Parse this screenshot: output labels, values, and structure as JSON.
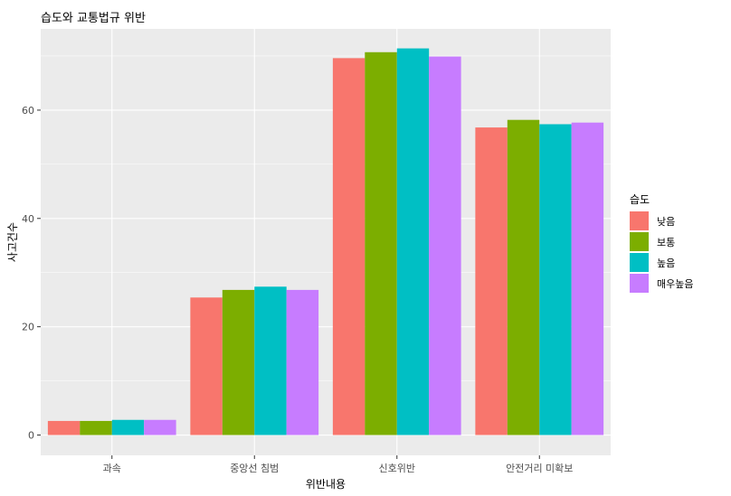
{
  "chart_data": {
    "type": "bar",
    "title": "습도와 교통법규 위반",
    "xlabel": "위반내용",
    "ylabel": "사고건수",
    "categories": [
      "과속",
      "중앙선 침범",
      "신호위반",
      "안전거리 미확보"
    ],
    "series": [
      {
        "name": "낮음",
        "values": [
          2.6,
          25.4,
          69.6,
          56.8
        ]
      },
      {
        "name": "보통",
        "values": [
          2.6,
          26.8,
          70.7,
          58.2
        ]
      },
      {
        "name": "높음",
        "values": [
          2.8,
          27.4,
          71.4,
          57.4
        ]
      },
      {
        "name": "매우높음",
        "values": [
          2.8,
          26.8,
          69.9,
          57.7
        ]
      }
    ],
    "ylim": [
      0,
      75
    ],
    "yticks": [
      0,
      20,
      40,
      60
    ],
    "grid": true,
    "legend_title": "습도",
    "legend_position": "right",
    "colors": {
      "낮음": "#F8766D",
      "보통": "#7CAE00",
      "높음": "#00BFC4",
      "매우높음": "#C77CFF",
      "panel_background": "#EBEBEB",
      "grid_major": "#FFFFFF"
    }
  }
}
